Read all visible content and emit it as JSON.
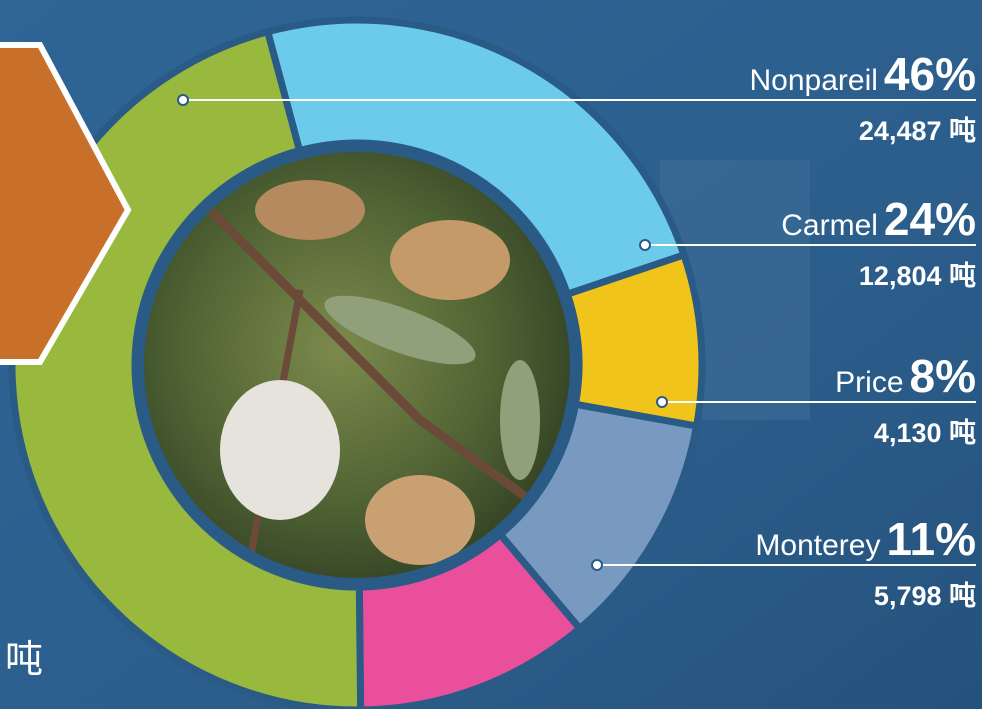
{
  "chart_data": {
    "type": "donut",
    "categories": [
      "Nonpareil",
      "Carmel",
      "Price",
      "Monterey",
      null
    ],
    "values": [
      46,
      24,
      8,
      11,
      11
    ],
    "value_labels": [
      "46%",
      "24%",
      "8%",
      "11%",
      null
    ],
    "tonnage_labels": [
      "24,487 吨",
      "12,804 吨",
      "4,130 吨",
      "5,798 吨",
      null
    ],
    "colors": [
      "#98b93e",
      "#6ccbea",
      "#f1c41b",
      "#7899c0",
      "#ea4f9b"
    ],
    "annotation": "吨"
  }
}
